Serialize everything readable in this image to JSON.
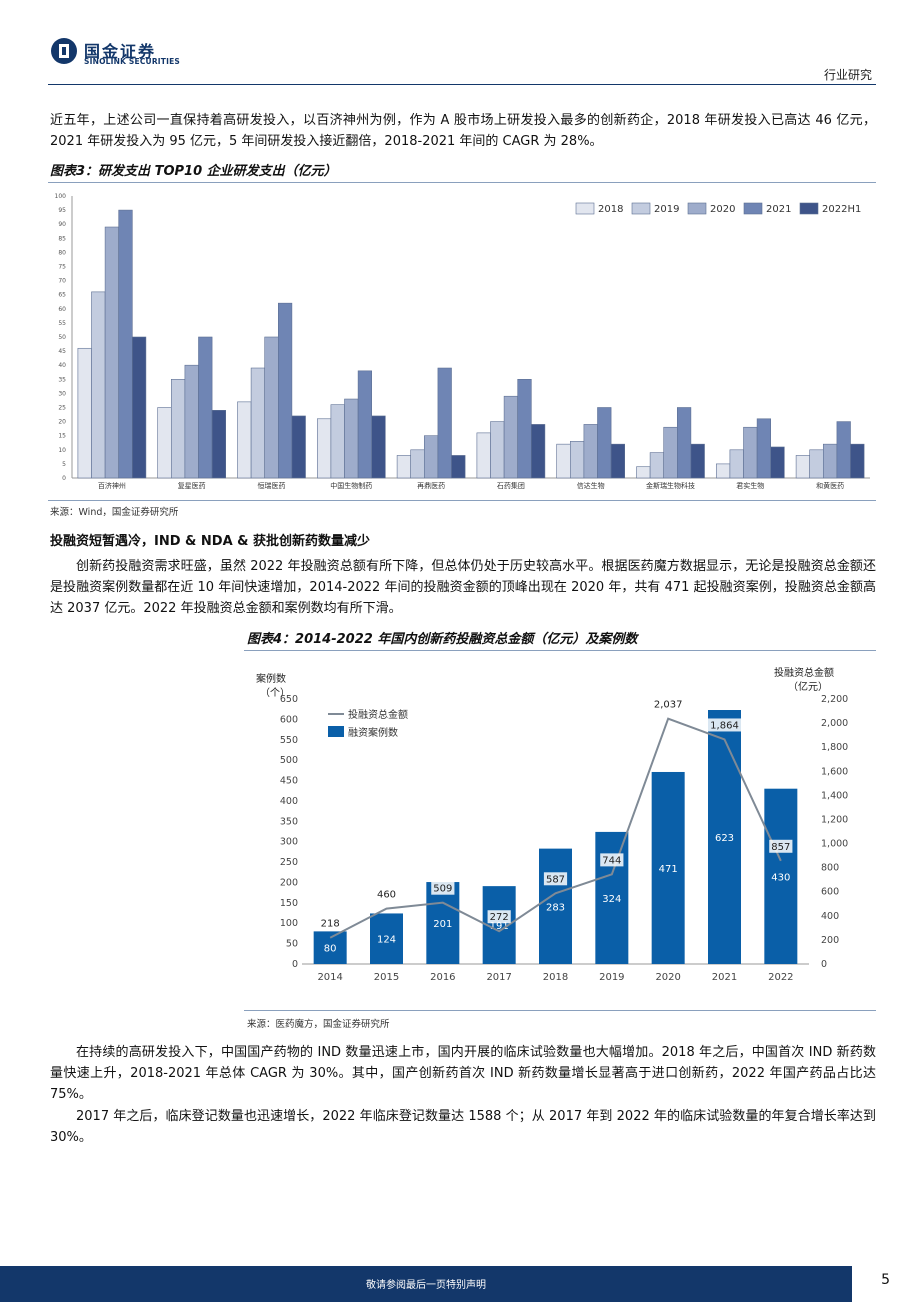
{
  "header": {
    "logo_cn": "国金证券",
    "logo_en": "SINOLINK SECURITIES",
    "tag": "行业研究"
  },
  "para1": "近五年，上述公司一直保持着高研发投入，以百济神州为例，作为 A 股市场上研发投入最多的创新药企，2018 年研发投入已高达 46 亿元，2021 年研发投入为 95 亿元，5 年间研发投入接近翻倍，2018-2021 年间的 CAGR 为 28%。",
  "fig3_title": "图表3：研发支出 TOP10 企业研发支出（亿元）",
  "fig3_source": "来源：Wind，国金证券研究所",
  "section_title": "投融资短暂遇冷，IND & NDA & 获批创新药数量减少",
  "para2": "创新药投融资需求旺盛，虽然 2022 年投融资总额有所下降，但总体仍处于历史较高水平。根据医药魔方数据显示，无论是投融资总金额还是投融资案例数量都在近 10 年间快速增加，2014-2022 年间的投融资金额的顶峰出现在 2020 年，共有 471 起投融资案例，投融资总金额高达 2037 亿元。2022 年投融资总金额和案例数均有所下滑。",
  "fig4_title": "图表4：2014-2022 年国内创新药投融资总金额（亿元）及案例数",
  "fig4_source": "来源：医药魔方，国金证券研究所",
  "para3": "在持续的高研发投入下，中国国产药物的 IND 数量迅速上市，国内开展的临床试验数量也大幅增加。2018 年之后，中国首次 IND 新药数量快速上升，2018-2021 年总体 CAGR 为 30%。其中，国产创新药首次 IND 新药数量增长显著高于进口创新药，2022 年国产药品占比达 75%。",
  "para4": "2017 年之后，临床登记数量也迅速增长，2022 年临床登记数量达 1588 个；从 2017 年到 2022 年的临床试验数量的年复合增长率达到 30%。",
  "footer": {
    "note": "敬请参阅最后一页特别声明",
    "page": "5"
  },
  "colors": {
    "navy": "#13376a",
    "bar_blue": "#0a5fa8",
    "line_gray": "#7f8a96",
    "c2018": "#e2e6ef",
    "c2019": "#c3ccdf",
    "c2020": "#9eaccb",
    "c2021": "#6f85b4",
    "c2022": "#3e5489"
  },
  "chart_data": [
    {
      "type": "bar",
      "title": "研发支出 TOP10 企业研发支出（亿元）",
      "categories": [
        "百济神州",
        "复星医药",
        "恒瑞医药",
        "中国生物制药",
        "再鼎医药",
        "石药集团",
        "信达生物",
        "金斯瑞生物科技",
        "君实生物",
        "和黄医药"
      ],
      "series": [
        {
          "name": "2018",
          "values": [
            46,
            25,
            27,
            21,
            8,
            16,
            12,
            4,
            5,
            8
          ]
        },
        {
          "name": "2019",
          "values": [
            66,
            35,
            39,
            26,
            10,
            20,
            13,
            9,
            10,
            10
          ]
        },
        {
          "name": "2020",
          "values": [
            89,
            40,
            50,
            28,
            15,
            29,
            19,
            18,
            18,
            12
          ]
        },
        {
          "name": "2021",
          "values": [
            95,
            50,
            62,
            38,
            39,
            35,
            25,
            25,
            21,
            20
          ]
        },
        {
          "name": "2022H1",
          "values": [
            50,
            24,
            22,
            22,
            8,
            19,
            12,
            12,
            11,
            12
          ]
        }
      ],
      "ylim": [
        0,
        100
      ],
      "yticks": [
        0,
        5,
        10,
        15,
        20,
        25,
        30,
        35,
        40,
        45,
        50,
        55,
        60,
        65,
        70,
        75,
        80,
        85,
        90,
        95,
        100
      ],
      "legend": "top-right"
    },
    {
      "type": "bar+line",
      "title": "2014-2022 年国内创新药投融资总金额（亿元）及案例数",
      "categories": [
        "2014",
        "2015",
        "2016",
        "2017",
        "2018",
        "2019",
        "2020",
        "2021",
        "2022"
      ],
      "bar_series": {
        "name": "融资案例数",
        "values": [
          80,
          124,
          201,
          191,
          283,
          324,
          471,
          623,
          430
        ]
      },
      "line_series": {
        "name": "投融资总金额",
        "values": [
          218,
          460,
          509,
          272,
          587,
          744,
          2037,
          1864,
          857
        ]
      },
      "line_labels": [
        "218",
        "460",
        "509",
        "272",
        "587",
        "744",
        "2,037",
        "1,864",
        "857"
      ],
      "ylabel_left": [
        "案例数",
        "（个）"
      ],
      "ylabel_right": [
        "投融资总金额",
        "（亿元）"
      ],
      "ylim_left": [
        0,
        650
      ],
      "ylim_right": [
        0,
        2200
      ],
      "yticks_left": [
        0,
        50,
        100,
        150,
        200,
        250,
        300,
        350,
        400,
        450,
        500,
        550,
        600,
        650
      ],
      "yticks_right": [
        "0",
        "200",
        "400",
        "600",
        "800",
        "1,000",
        "1,200",
        "1,400",
        "1,600",
        "1,800",
        "2,000",
        "2,200"
      ],
      "legend": "top-left"
    }
  ]
}
